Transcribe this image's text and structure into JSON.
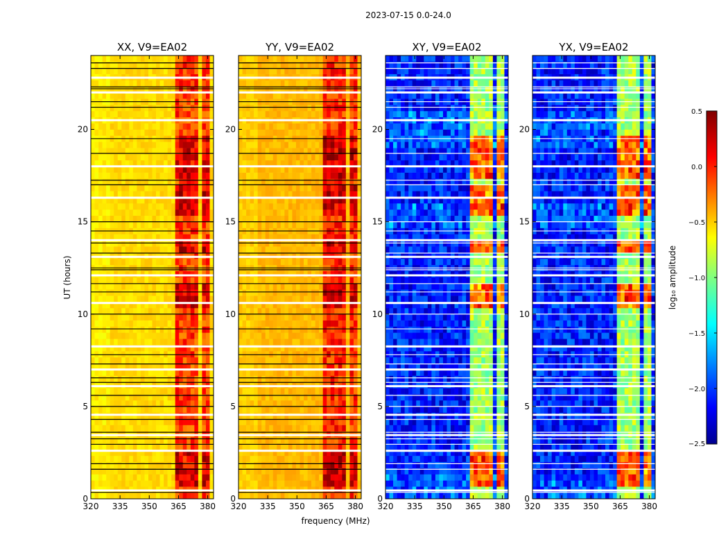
{
  "suptitle": "2023-07-15 0.0-24.0",
  "chart_data": {
    "type": "heatmap",
    "colormap": "jet",
    "shared_axes": {
      "xlabel": "frequency (MHz)",
      "ylabel": "UT (hours)",
      "xlim": [
        320,
        383
      ],
      "ylim": [
        0,
        24
      ],
      "xticks": [
        320,
        335,
        350,
        365,
        380
      ],
      "yticks": [
        0,
        5,
        10,
        15,
        20
      ]
    },
    "panels": [
      {
        "title": "XX, V9=EA02",
        "base_level": -0.52,
        "band_level": -0.05,
        "mode": "auto"
      },
      {
        "title": "YY, V9=EA02",
        "base_level": -0.42,
        "band_level": 0.0,
        "mode": "auto"
      },
      {
        "title": "XY, V9=EA02",
        "base_level": -2.05,
        "band_level": -0.9,
        "mode": "cross"
      },
      {
        "title": "YX, V9=EA02",
        "base_level": -2.05,
        "band_level": -0.9,
        "mode": "cross"
      }
    ],
    "rfi_band_mhz": [
      [
        363,
        369
      ],
      [
        370,
        376
      ],
      [
        377,
        381
      ]
    ],
    "flagged_ut_hours": [
      0.35,
      0.45,
      1.6,
      1.9,
      2.6,
      2.95,
      3.25,
      3.45,
      3.6,
      4.3,
      4.55,
      5.0,
      5.6,
      6.1,
      6.3,
      6.55,
      7.0,
      7.3,
      7.8,
      8.25,
      9.2,
      10.0,
      10.6,
      11.2,
      11.65,
      12.1,
      12.4,
      12.5,
      13.1,
      13.3,
      13.85,
      14.0,
      14.5,
      15.0,
      16.3,
      17.0,
      17.25,
      18.0,
      18.7,
      19.5,
      20.5,
      21.2,
      21.5,
      22.0,
      22.2,
      22.3,
      22.8,
      23.3,
      23.6
    ],
    "strong_rfi_ut_ranges": [
      [
        17.2,
        19.8
      ],
      [
        15.5,
        17.1
      ],
      [
        10.5,
        11.8
      ],
      [
        13.2,
        13.9
      ],
      [
        0.6,
        2.8
      ]
    ],
    "colorbar": {
      "label": "log₁₀ amplitude",
      "range": [
        -2.5,
        0.5
      ],
      "ticks": [
        0.5,
        0.0,
        -0.5,
        -1.0,
        -1.5,
        -2.0,
        -2.5
      ],
      "tick_labels": [
        "0.5",
        "0.0",
        "−0.5",
        "−1.0",
        "−1.5",
        "−2.0",
        "−2.5"
      ]
    }
  }
}
